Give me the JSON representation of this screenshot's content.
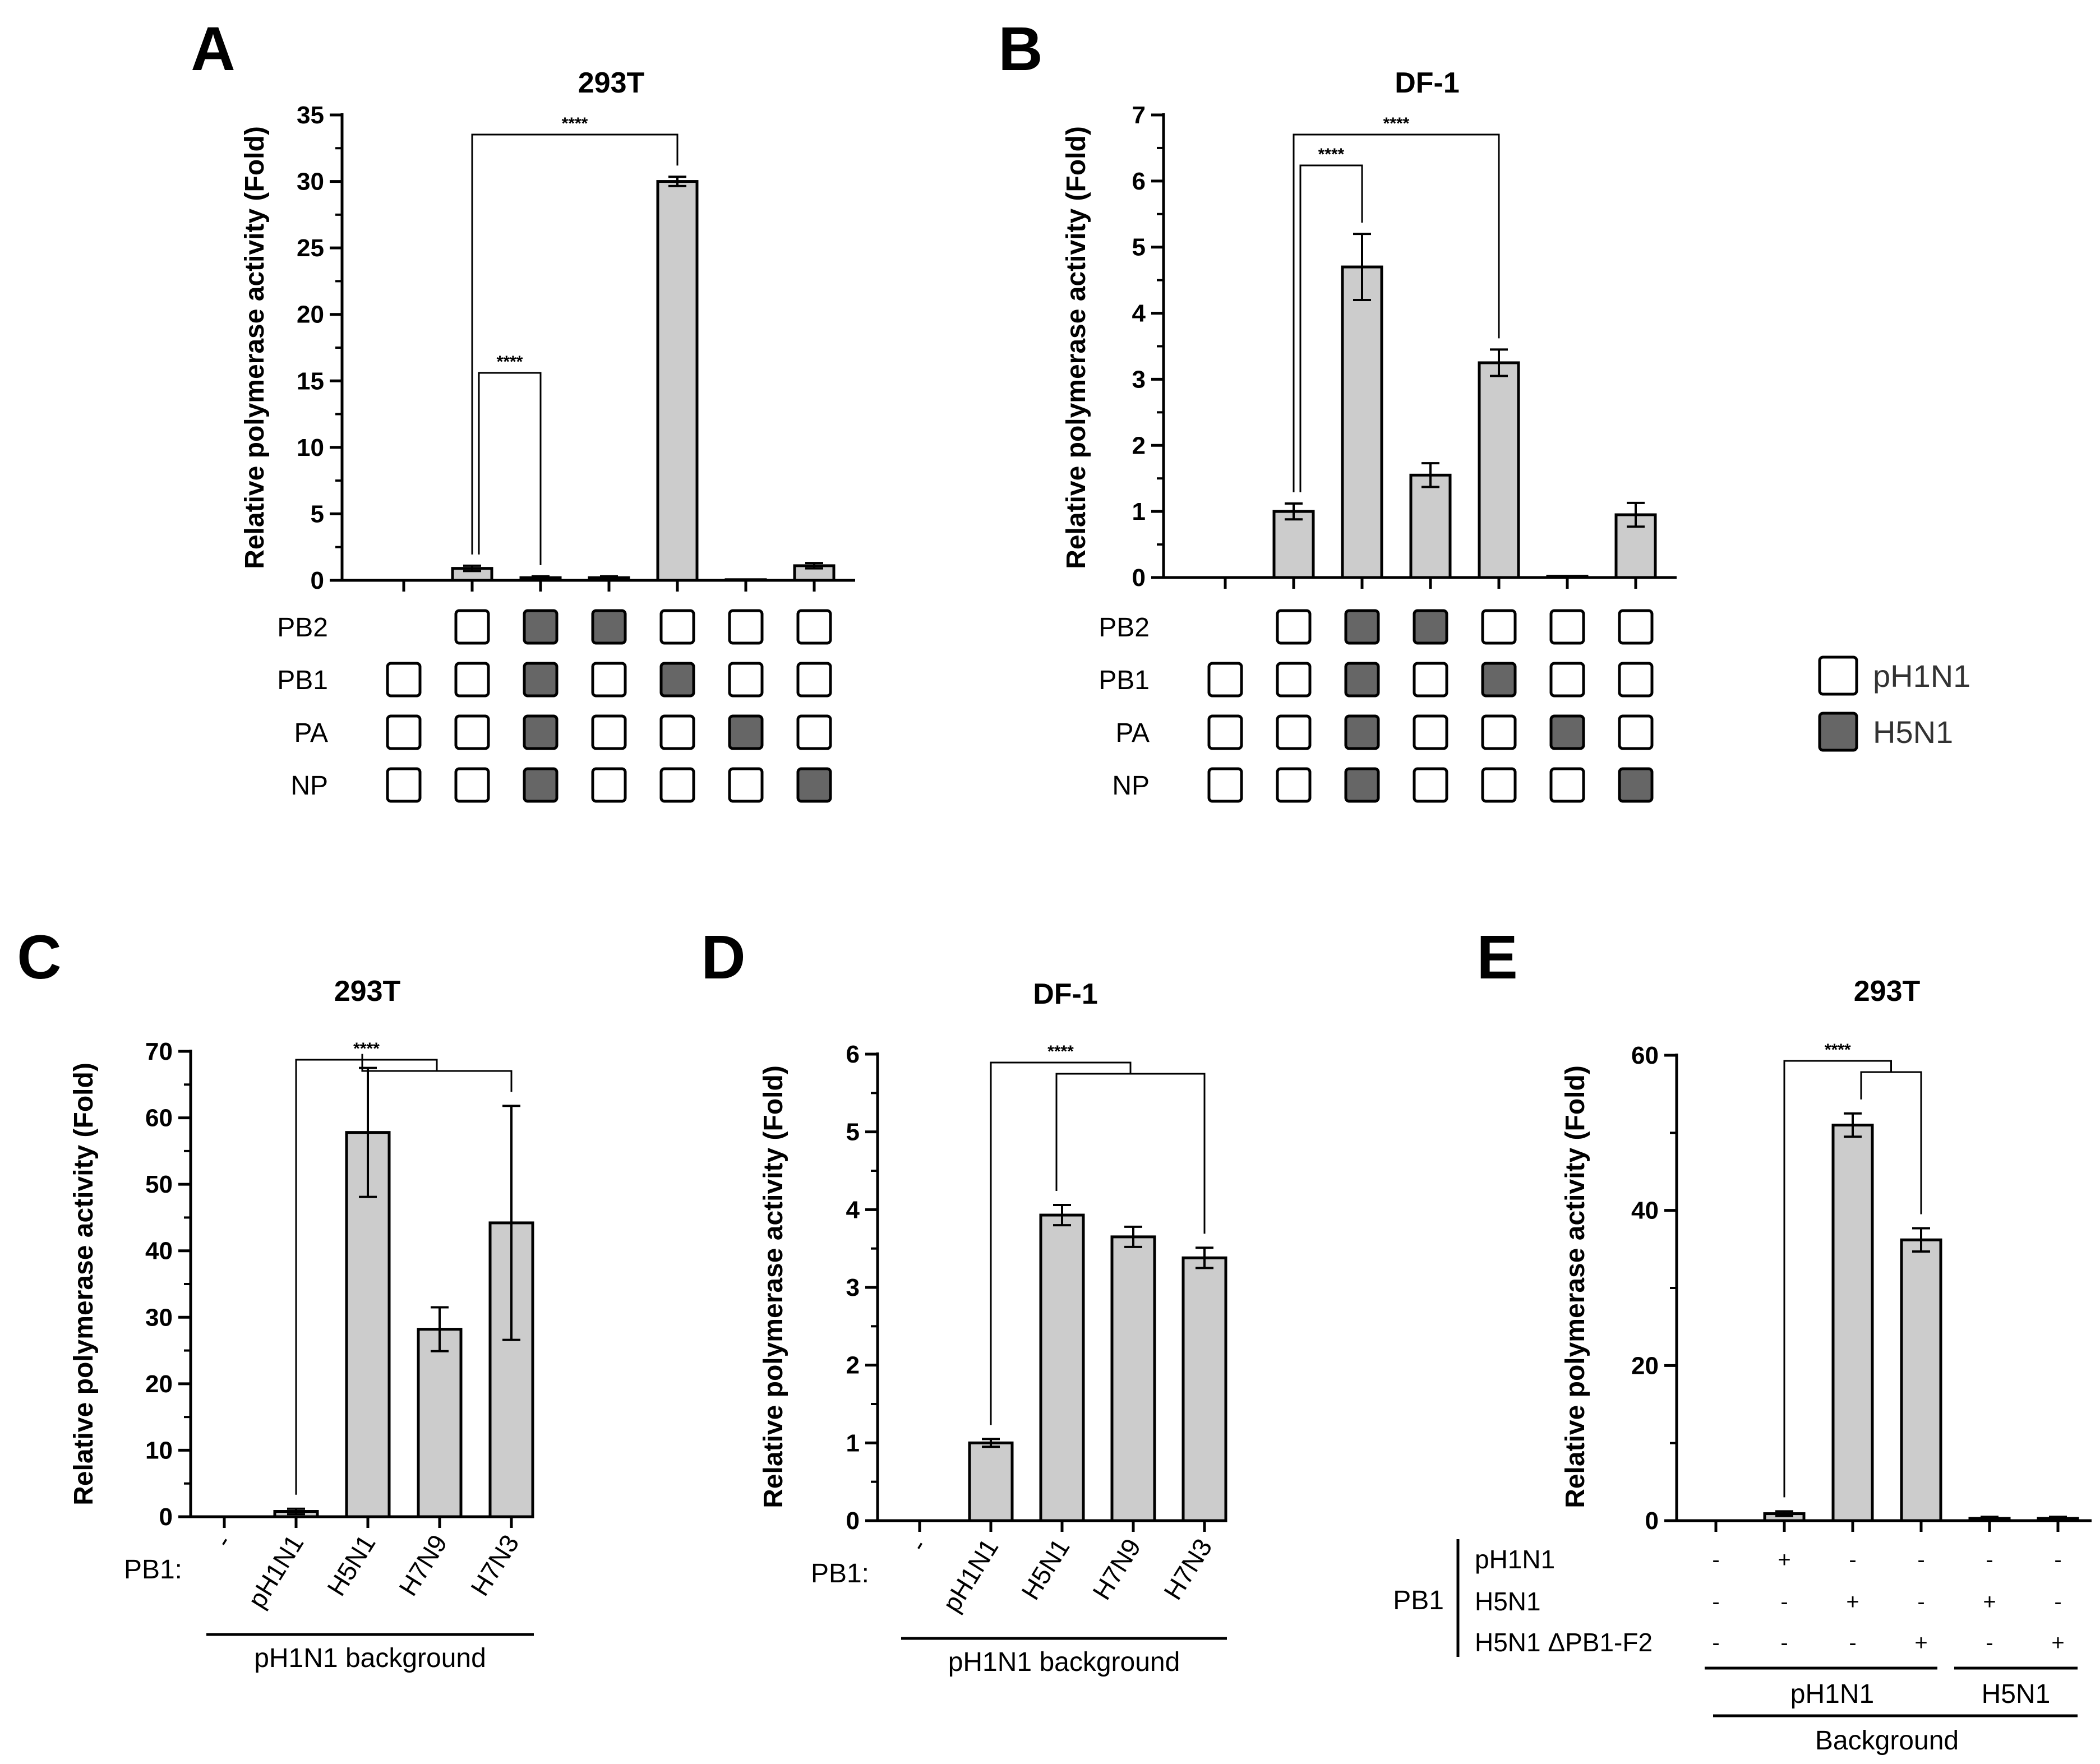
{
  "colors": {
    "bar_fill": "#cccccc",
    "stroke": "#000000",
    "box_h5n1": "#666666",
    "box_ph1n1": "#ffffff",
    "background": "#ffffff"
  },
  "legend": {
    "items": [
      "pH1N1",
      "H5N1"
    ],
    "position": "right"
  },
  "chart_data": [
    {
      "panel": "A",
      "type": "bar",
      "title": "293T",
      "ylabel": "Relative polymerase activity (Fold)",
      "ylim": [
        0,
        35
      ],
      "yticks": [
        0,
        5,
        10,
        15,
        20,
        25,
        30,
        35
      ],
      "values": [
        0,
        0.9,
        0.2,
        0.2,
        30.0,
        0.05,
        1.1
      ],
      "errors": [
        0,
        0.2,
        0.1,
        0.1,
        0.35,
        0,
        0.2
      ],
      "segment_labels": [
        "PB2",
        "PB1",
        "PA",
        "NP"
      ],
      "segment_matrix": [
        [
          "",
          "p",
          "h",
          "h",
          "p",
          "p",
          "p"
        ],
        [
          "p",
          "p",
          "h",
          "p",
          "h",
          "p",
          "p"
        ],
        [
          "p",
          "p",
          "h",
          "p",
          "p",
          "h",
          "p"
        ],
        [
          "p",
          "p",
          "h",
          "p",
          "p",
          "p",
          "h"
        ]
      ],
      "significance": [
        {
          "label": "****",
          "from": 1,
          "to": 4
        },
        {
          "label": "****",
          "from": 1,
          "to": 2
        }
      ]
    },
    {
      "panel": "B",
      "type": "bar",
      "title": "DF-1",
      "ylabel": "Relative polymerase activity (Fold)",
      "ylim": [
        0,
        7
      ],
      "yticks": [
        0,
        1,
        2,
        3,
        4,
        5,
        6,
        7
      ],
      "values": [
        0,
        1.0,
        4.7,
        1.55,
        3.25,
        0.02,
        0.95
      ],
      "errors": [
        0,
        0.12,
        0.5,
        0.18,
        0.2,
        0,
        0.18
      ],
      "segment_labels": [
        "PB2",
        "PB1",
        "PA",
        "NP"
      ],
      "segment_matrix": [
        [
          "",
          "p",
          "h",
          "h",
          "p",
          "p",
          "p"
        ],
        [
          "p",
          "p",
          "h",
          "p",
          "h",
          "p",
          "p"
        ],
        [
          "p",
          "p",
          "h",
          "p",
          "p",
          "h",
          "p"
        ],
        [
          "p",
          "p",
          "h",
          "p",
          "p",
          "p",
          "h"
        ]
      ],
      "significance": [
        {
          "label": "****",
          "from": 1,
          "to": 4
        },
        {
          "label": "****",
          "from": 1,
          "to": 2
        }
      ]
    },
    {
      "panel": "C",
      "type": "bar",
      "title": "293T",
      "ylabel": "Relative polymerase activity (Fold)",
      "ylim": [
        0,
        70
      ],
      "yticks": [
        0,
        10,
        20,
        30,
        40,
        50,
        60,
        70
      ],
      "categories": [
        "-",
        "pH1N1",
        "H5N1",
        "H7N9",
        "H7N3"
      ],
      "values": [
        0,
        0.8,
        57.8,
        28.2,
        44.2
      ],
      "errors": [
        0,
        0.4,
        9.7,
        3.3,
        17.6
      ],
      "row_label": "PB1:",
      "background_label": "pH1N1 background",
      "significance_label": "****"
    },
    {
      "panel": "D",
      "type": "bar",
      "title": "DF-1",
      "ylabel": "Relative polymerase activity (Fold)",
      "ylim": [
        0,
        6
      ],
      "yticks": [
        0,
        1,
        2,
        3,
        4,
        5,
        6
      ],
      "categories": [
        "-",
        "pH1N1",
        "H5N1",
        "H7N9",
        "H7N3"
      ],
      "values": [
        0,
        1.0,
        3.93,
        3.65,
        3.38
      ],
      "errors": [
        0,
        0.05,
        0.13,
        0.13,
        0.13
      ],
      "row_label": "PB1:",
      "background_label": "pH1N1 background",
      "significance_label": "****"
    },
    {
      "panel": "E",
      "type": "bar",
      "title": "293T",
      "ylabel": "Relative polymerase activity (Fold)",
      "ylim": [
        0,
        60
      ],
      "yticks": [
        0,
        20,
        40,
        60
      ],
      "values": [
        0,
        0.9,
        51.0,
        36.2,
        0.3,
        0.3
      ],
      "errors": [
        0,
        0.3,
        1.5,
        1.5,
        0.2,
        0.2
      ],
      "row_group_label": "PB1",
      "rows": [
        {
          "label": "pH1N1",
          "marks": [
            "-",
            "+",
            "-",
            "-",
            "-",
            "-"
          ]
        },
        {
          "label": "H5N1",
          "marks": [
            "-",
            "-",
            "+",
            "-",
            "+",
            "-"
          ]
        },
        {
          "label": "H5N1 ΔPB1-F2",
          "marks": [
            "-",
            "-",
            "-",
            "+",
            "-",
            "+"
          ]
        }
      ],
      "groups": [
        {
          "label": "pH1N1",
          "from": 0,
          "to": 3
        },
        {
          "label": "H5N1",
          "from": 4,
          "to": 5
        }
      ],
      "background_label": "Background",
      "significance_label": "****"
    }
  ],
  "panel_letters": [
    "A",
    "B",
    "C",
    "D",
    "E"
  ]
}
